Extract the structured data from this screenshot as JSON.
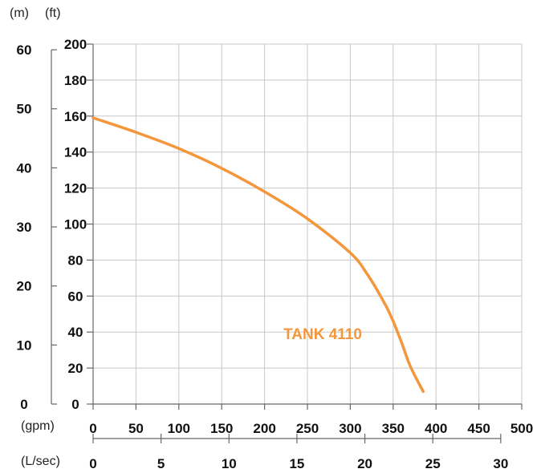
{
  "chart_data": {
    "type": "line",
    "units": {
      "head_m": "(m)",
      "head_ft": "(ft)",
      "flow_gpm": "(gpm)",
      "flow_lsec": "(L/sec)"
    },
    "y_ft": {
      "range": [
        0,
        200
      ],
      "ticks": [
        "0",
        "20",
        "40",
        "60",
        "80",
        "100",
        "120",
        "140",
        "160",
        "180",
        "200"
      ]
    },
    "y_m": {
      "ticks": [
        "0",
        "10",
        "20",
        "30",
        "40",
        "50",
        "60"
      ]
    },
    "x_gpm": {
      "range": [
        0,
        500
      ],
      "ticks": [
        "0",
        "50",
        "100",
        "150",
        "200",
        "250",
        "300",
        "350",
        "400",
        "450",
        "500"
      ]
    },
    "x_lsec": {
      "ticks": [
        "0",
        "5",
        "10",
        "15",
        "20",
        "25",
        "30"
      ]
    },
    "grid": true,
    "series": [
      {
        "name": "TANK 4110",
        "color": "#f4963c",
        "x": [
          0,
          50,
          100,
          150,
          200,
          250,
          300,
          320,
          340,
          350,
          360,
          370,
          385
        ],
        "y": [
          159,
          151,
          142,
          131,
          118,
          103,
          84,
          72,
          56,
          46,
          34,
          21,
          7
        ]
      }
    ]
  }
}
